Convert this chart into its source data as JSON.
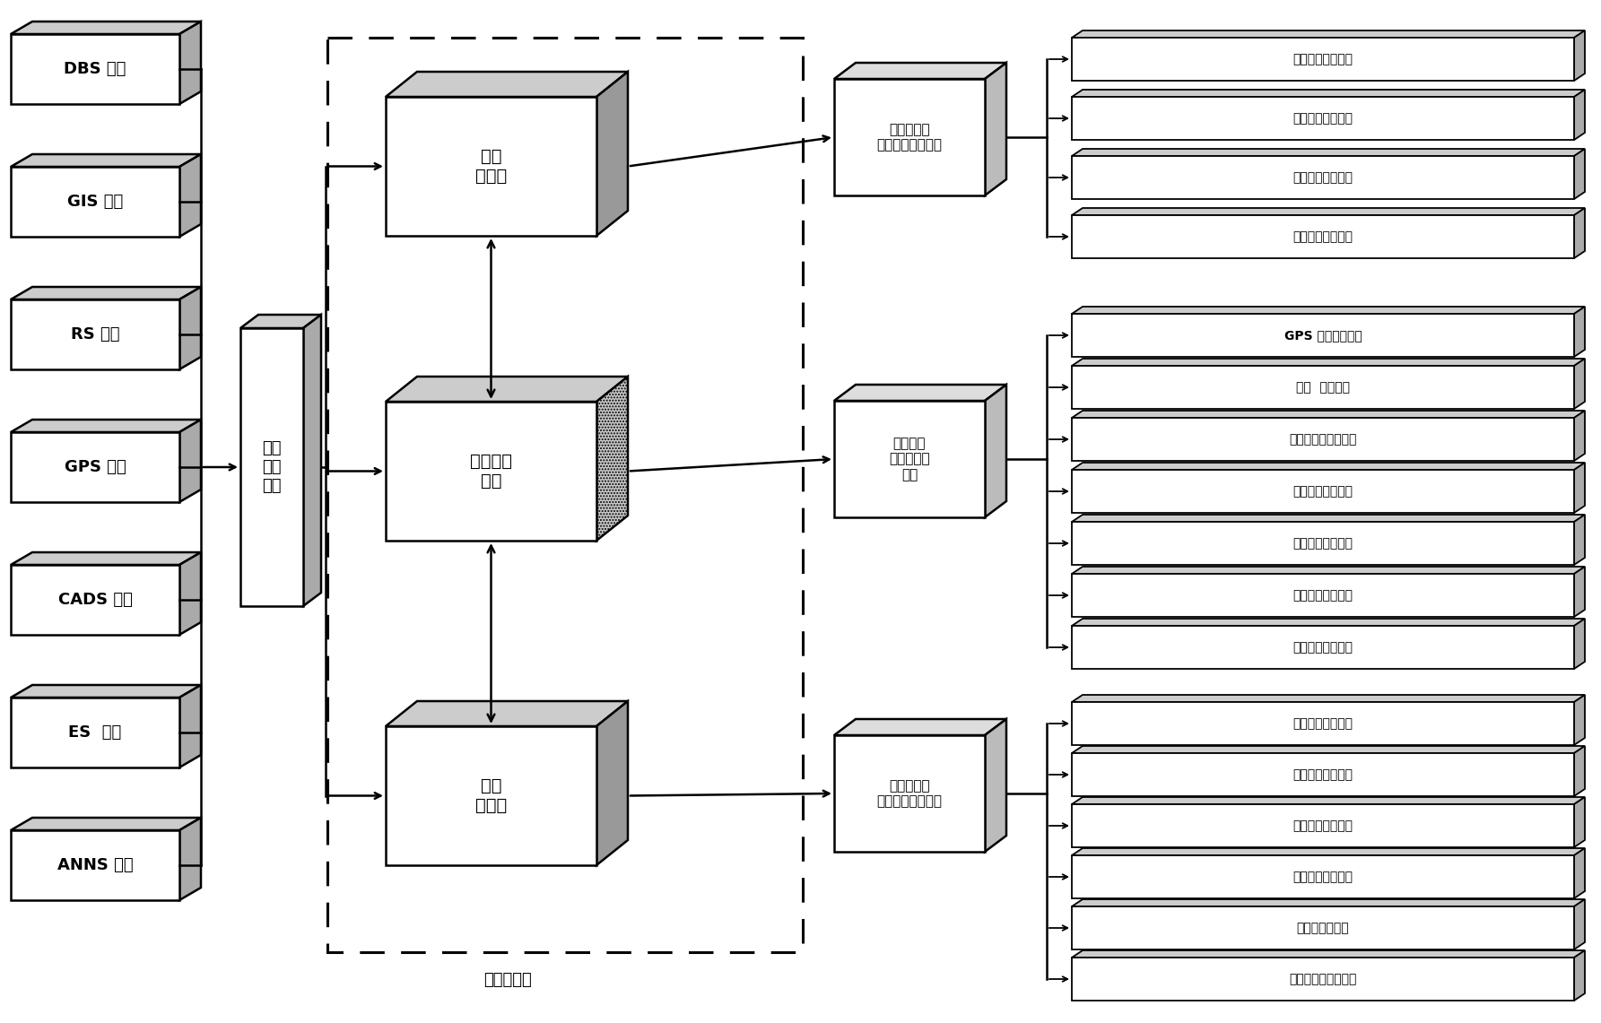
{
  "bg_color": "#ffffff",
  "left_box_labels": [
    "DBS 技术",
    "GIS 技术",
    "RS 技术",
    "GPS 技术",
    "CADS 技术",
    "ES  技术",
    "ANNS 技术"
  ],
  "middle_box_label": "面向\n对象\n技术",
  "db_box_labels": [
    "属性\n数据库",
    "数据仓库\n技术",
    "空间\n数据库"
  ],
  "db_box_dotted": [
    false,
    true,
    false
  ],
  "dashed_label": "主题数据库",
  "subsystem_labels": [
    "前期资料搜\n集整理子系统平台",
    "野外数据\n采集子系统\n平台",
    "室内数据综\n合整理子系统平台"
  ],
  "group1_items": [
    "属性数据采集模块",
    "空间数据采集模块",
    "二维图形编辑模块",
    "数据综合分析模块"
  ],
  "group2_items": [
    "GPS 数据采集模块",
    "平图  标绘模块",
    "遥感解译图标绘模块",
    "属性数据采集模块",
    "地质素图描绘模块",
    "地质现象系描模块",
    "实测剖面测绘模块"
  ],
  "group3_items": [
    "属性数据整理模块",
    "属性数据处理模块",
    "空间数据整理模块",
    "空间数据处理模块",
    "地质图编辑模块",
    "插图与图切剖面模块"
  ],
  "lw_main": 1.8,
  "lw_thin": 1.3
}
